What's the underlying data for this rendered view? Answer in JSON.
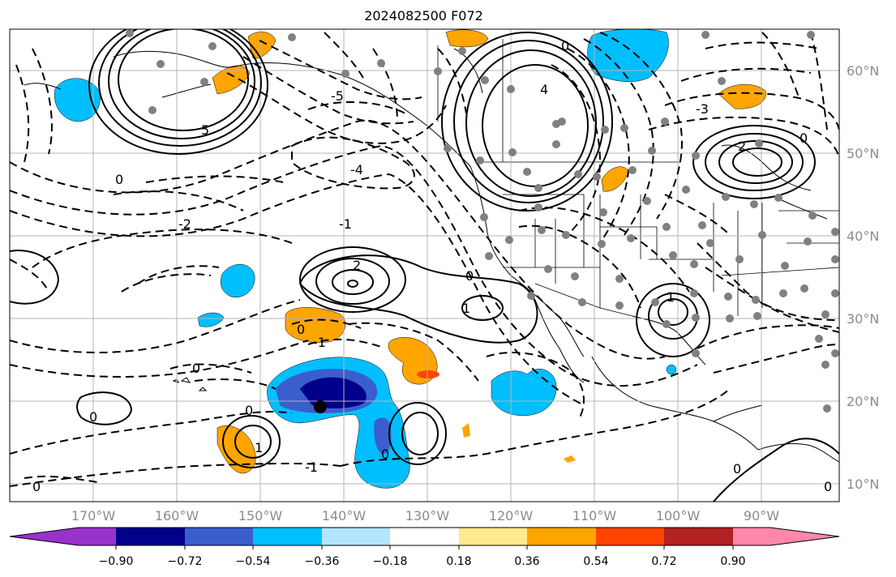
{
  "title": "2024082500 F072",
  "longitude_labels": [
    "170°W",
    "160°W",
    "150°W",
    "140°W",
    "130°W",
    "120°W",
    "110°W",
    "100°W",
    "90°W"
  ],
  "latitude_labels": [
    "60°N",
    "50°N",
    "40°N",
    "30°N",
    "20°N",
    "10°N"
  ],
  "colorbar": {
    "tick_labels": [
      "−0.90",
      "−0.72",
      "−0.54",
      "−0.36",
      "−0.18",
      "0.18",
      "0.36",
      "0.54",
      "0.72",
      "0.90"
    ],
    "colors": [
      "#9932cc",
      "#00008b",
      "#3a5fcd",
      "#00bfff",
      "#b2e5ff",
      "#ffffff",
      "#ffea8c",
      "#ffa500",
      "#ff4500",
      "#b22222",
      "#ff88aa"
    ]
  },
  "contour_labels": [
    "0",
    "-1",
    "-2",
    "-3",
    "-4",
    "-5",
    "1",
    "2",
    "3",
    "4",
    "5"
  ]
}
